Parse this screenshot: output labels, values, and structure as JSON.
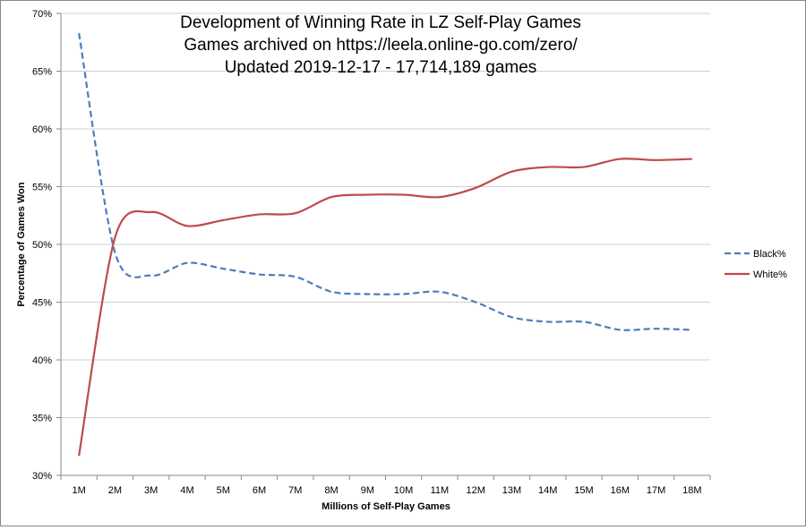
{
  "chart_data": {
    "type": "line",
    "title_lines": [
      "Development of Winning Rate in LZ Self-Play Games",
      "Games archived on https://leela.online-go.com/zero/",
      "Updated 2019-12-17 - 17,714,189 games"
    ],
    "xlabel": "Millions of Self-Play Games",
    "ylabel": "Percentage of Games Won",
    "categories": [
      "1M",
      "2M",
      "3M",
      "4M",
      "5M",
      "6M",
      "7M",
      "8M",
      "9M",
      "10M",
      "11M",
      "12M",
      "13M",
      "14M",
      "15M",
      "16M",
      "17M",
      "18M"
    ],
    "yticks": [
      "30%",
      "35%",
      "40%",
      "45%",
      "50%",
      "55%",
      "60%",
      "65%",
      "70%"
    ],
    "ylim": [
      30,
      70
    ],
    "grid": true,
    "legend_position": "right",
    "series": [
      {
        "name": "Black%",
        "color": "#4a7ebb",
        "dash": true,
        "values": [
          68.3,
          49.3,
          47.3,
          48.4,
          47.9,
          47.4,
          47.2,
          45.9,
          45.7,
          45.7,
          45.9,
          45.0,
          43.7,
          43.3,
          43.3,
          42.6,
          42.7,
          42.6
        ]
      },
      {
        "name": "White%",
        "color": "#be4b48",
        "dash": false,
        "values": [
          31.7,
          50.6,
          52.8,
          51.6,
          52.1,
          52.6,
          52.7,
          54.1,
          54.3,
          54.3,
          54.1,
          54.9,
          56.3,
          56.7,
          56.7,
          57.4,
          57.3,
          57.4
        ]
      }
    ]
  }
}
